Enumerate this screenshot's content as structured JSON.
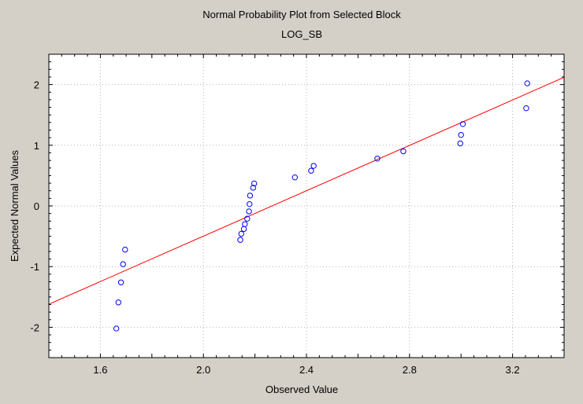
{
  "chart_data": {
    "type": "scatter",
    "title": "Normal Probability Plot from Selected Block",
    "subtitle": "LOG_SB",
    "xlabel": "Observed Value",
    "ylabel": "Expected Normal Values",
    "xlim": [
      1.4,
      3.4
    ],
    "ylim": [
      -2.5,
      2.5
    ],
    "xticks": [
      1.6,
      2.0,
      2.4,
      2.8,
      3.2
    ],
    "xtick_labels": [
      "1.6",
      "2.0",
      "2.4",
      "2.8",
      "3.2"
    ],
    "yticks": [
      -2,
      -1,
      0,
      1,
      2
    ],
    "ytick_labels": [
      "-2",
      "-1",
      "0",
      "1",
      "2"
    ],
    "grid": true,
    "points": [
      {
        "x": 1.662,
        "y": -2.02
      },
      {
        "x": 1.67,
        "y": -1.59
      },
      {
        "x": 1.68,
        "y": -1.26
      },
      {
        "x": 1.688,
        "y": -0.96
      },
      {
        "x": 1.696,
        "y": -0.72
      },
      {
        "x": 2.143,
        "y": -0.56
      },
      {
        "x": 2.147,
        "y": -0.46
      },
      {
        "x": 2.157,
        "y": -0.38
      },
      {
        "x": 2.161,
        "y": -0.3
      },
      {
        "x": 2.17,
        "y": -0.21
      },
      {
        "x": 2.177,
        "y": -0.09
      },
      {
        "x": 2.179,
        "y": 0.03
      },
      {
        "x": 2.181,
        "y": 0.17
      },
      {
        "x": 2.193,
        "y": 0.3
      },
      {
        "x": 2.197,
        "y": 0.37
      },
      {
        "x": 2.355,
        "y": 0.47
      },
      {
        "x": 2.418,
        "y": 0.58
      },
      {
        "x": 2.428,
        "y": 0.66
      },
      {
        "x": 2.675,
        "y": 0.78
      },
      {
        "x": 2.776,
        "y": 0.9
      },
      {
        "x": 2.997,
        "y": 1.03
      },
      {
        "x": 3.0,
        "y": 1.17
      },
      {
        "x": 3.007,
        "y": 1.35
      },
      {
        "x": 3.253,
        "y": 1.61
      },
      {
        "x": 3.257,
        "y": 2.02
      }
    ],
    "fit_line": {
      "x": [
        1.4,
        3.4
      ],
      "y": [
        -1.62,
        2.12
      ]
    },
    "colors": {
      "background": "#d4d0c8",
      "plot_area": "#ffffff",
      "points": "#0000ff",
      "fit_line": "#ff0000",
      "grid": "#b4b4b4",
      "axis": "#000000"
    }
  }
}
